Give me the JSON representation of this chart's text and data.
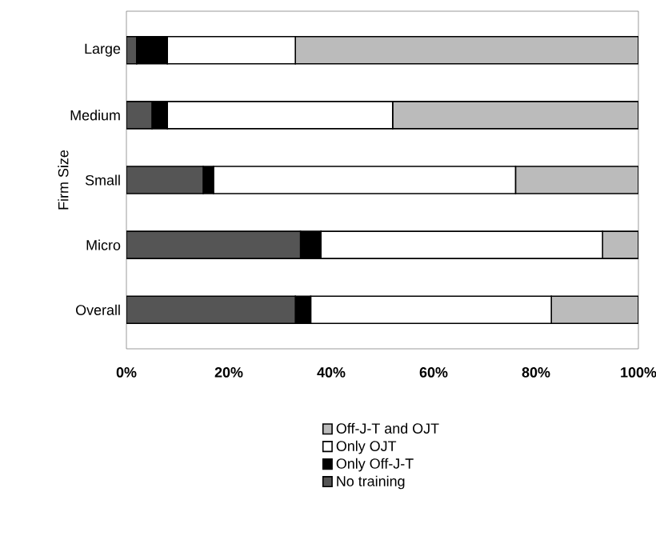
{
  "chart_data": {
    "type": "bar",
    "orientation": "horizontal",
    "stacked": true,
    "ylabel": "Firm Size",
    "categories": [
      "Large",
      "Medium",
      "Small",
      "Micro",
      "Overall"
    ],
    "series": [
      {
        "name": "No training",
        "color": "#555555",
        "values": [
          2,
          5,
          15,
          34,
          33
        ]
      },
      {
        "name": "Only Off-J-T",
        "color": "#000000",
        "values": [
          6,
          3,
          2,
          4,
          3
        ]
      },
      {
        "name": "Only OJT",
        "color": "#ffffff",
        "values": [
          25,
          44,
          59,
          55,
          47
        ]
      },
      {
        "name": "Off-J-T and OJT",
        "color": "#bbbbbb",
        "values": [
          67,
          48,
          24,
          7,
          17
        ]
      }
    ],
    "xlim": [
      0,
      100
    ],
    "xticks": [
      {
        "value": 0,
        "label": "0%"
      },
      {
        "value": 20,
        "label": "20%"
      },
      {
        "value": 40,
        "label": "40%"
      },
      {
        "value": 60,
        "label": "60%"
      },
      {
        "value": 80,
        "label": "80%"
      },
      {
        "value": 100,
        "label": "100%"
      }
    ],
    "legend": "bottom"
  }
}
